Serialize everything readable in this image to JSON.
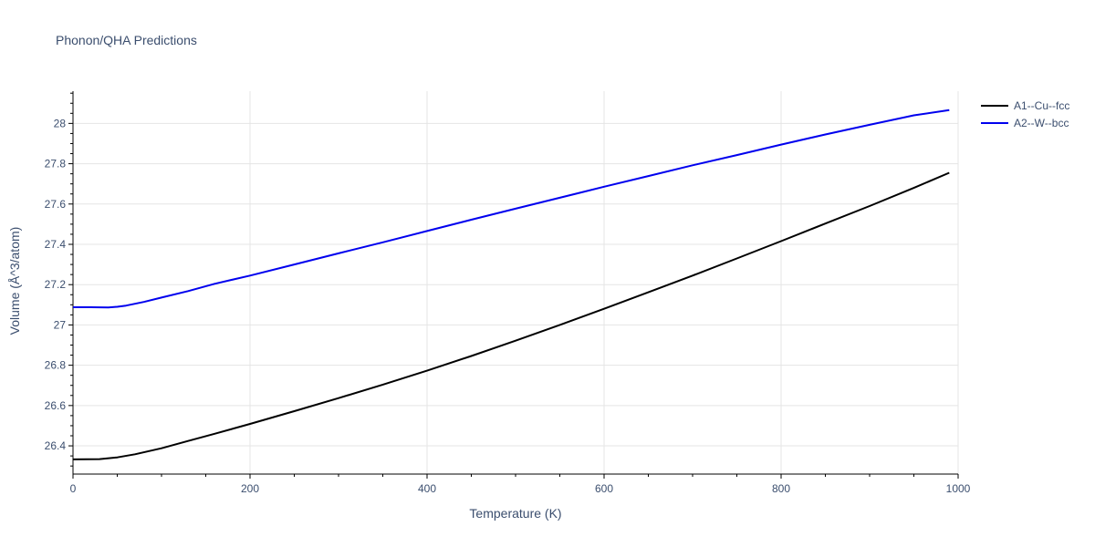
{
  "colors": {
    "background": "#ffffff",
    "grid": "#e5e5e5",
    "axis": "#000000",
    "text": "#3b4e6e"
  },
  "chart_data": {
    "type": "line",
    "title": "Phonon/QHA Predictions",
    "xlabel": "Temperature (K)",
    "ylabel": "Volume (Å^3/atom)",
    "xlim": [
      0,
      1000
    ],
    "ylim": [
      26.26,
      28.16
    ],
    "x_ticks": [
      0,
      200,
      400,
      600,
      800,
      1000
    ],
    "y_ticks": [
      26.4,
      26.6,
      26.8,
      27,
      27.2,
      27.4,
      27.6,
      27.8,
      28
    ],
    "y_tick_labels": [
      "26.4",
      "26.6",
      "26.8",
      "27",
      "27.2",
      "27.4",
      "27.6",
      "27.8",
      "28"
    ],
    "grid": true,
    "legend_position": "top-right",
    "series": [
      {
        "name": "A1--Cu--fcc",
        "color": "#000000",
        "x": [
          0,
          30,
          50,
          70,
          100,
          130,
          160,
          200,
          250,
          300,
          350,
          400,
          450,
          500,
          550,
          600,
          650,
          700,
          750,
          800,
          850,
          900,
          950,
          990
        ],
        "y": [
          26.333,
          26.334,
          26.343,
          26.358,
          26.388,
          26.424,
          26.46,
          26.509,
          26.572,
          26.637,
          26.704,
          26.773,
          26.846,
          26.922,
          27.0,
          27.08,
          27.162,
          27.245,
          27.33,
          27.416,
          27.503,
          27.59,
          27.68,
          27.755
        ]
      },
      {
        "name": "A2--W--bcc",
        "color": "#0000ee",
        "x": [
          0,
          20,
          40,
          50,
          60,
          80,
          100,
          130,
          160,
          200,
          250,
          300,
          350,
          400,
          450,
          500,
          550,
          600,
          650,
          700,
          750,
          800,
          850,
          900,
          950,
          990
        ],
        "y": [
          27.088,
          27.088,
          27.087,
          27.09,
          27.096,
          27.114,
          27.136,
          27.168,
          27.204,
          27.245,
          27.3,
          27.355,
          27.41,
          27.466,
          27.522,
          27.577,
          27.631,
          27.686,
          27.739,
          27.792,
          27.843,
          27.895,
          27.945,
          27.993,
          28.04,
          28.066
        ]
      }
    ]
  }
}
